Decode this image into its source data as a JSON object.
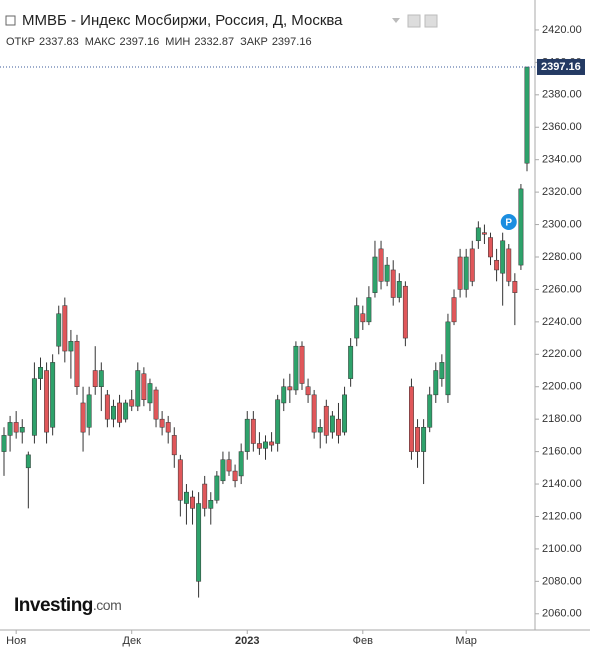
{
  "chart_data": {
    "type": "candlestick",
    "title": "ММВБ - Индекс Мосбиржи, Россия, Д, Москва",
    "ohlc_labels": [
      "ОТКР",
      "МАКС",
      "МИН",
      "ЗАКР"
    ],
    "watermark": [
      "Investing",
      ".com"
    ],
    "marker_label": "P",
    "up_color": "#2ea26b",
    "down_color": "#e0575a",
    "categories": [
      null,
      null,
      "Ноя",
      null,
      null,
      null,
      null,
      null,
      null,
      null,
      null,
      null,
      null,
      null,
      null,
      null,
      null,
      null,
      null,
      null,
      null,
      "Дек",
      null,
      null,
      null,
      null,
      null,
      null,
      null,
      null,
      null,
      null,
      null,
      null,
      null,
      null,
      null,
      null,
      null,
      null,
      "2023",
      null,
      null,
      null,
      null,
      null,
      null,
      null,
      null,
      null,
      null,
      null,
      null,
      null,
      null,
      null,
      null,
      null,
      null,
      "Фев",
      null,
      null,
      null,
      null,
      null,
      null,
      null,
      null,
      null,
      null,
      null,
      null,
      null,
      null,
      null,
      null,
      "Мар",
      null,
      null,
      null,
      null,
      null,
      null,
      null,
      null,
      null,
      null
    ],
    "open": [
      2160,
      2170,
      2178,
      2172,
      2150,
      2170,
      2205,
      2210,
      2175,
      2225,
      2250,
      2222,
      2228,
      2190,
      2175,
      2210,
      2200,
      2195,
      2180,
      2190,
      2180,
      2192,
      2188,
      2208,
      2190,
      2198,
      2180,
      2178,
      2170,
      2155,
      2128,
      2132,
      2080,
      2140,
      2125,
      2130,
      2142,
      2155,
      2148,
      2145,
      2160,
      2180,
      2165,
      2162,
      2166,
      2165,
      2190,
      2200,
      2198,
      2225,
      2200,
      2195,
      2172,
      2188,
      2172,
      2180,
      2172,
      2205,
      2230,
      2245,
      2240,
      2258,
      2285,
      2265,
      2272,
      2255,
      2262,
      2200,
      2175,
      2160,
      2175,
      2195,
      2205,
      2195,
      2255,
      2280,
      2260,
      2285,
      2290,
      2295,
      2292,
      2278,
      2270,
      2285,
      2265,
      2275,
      2337.83
    ],
    "high": [
      2175,
      2182,
      2185,
      2180,
      2160,
      2215,
      2218,
      2215,
      2220,
      2250,
      2255,
      2235,
      2232,
      2200,
      2200,
      2225,
      2215,
      2198,
      2192,
      2195,
      2192,
      2198,
      2215,
      2212,
      2205,
      2200,
      2185,
      2182,
      2175,
      2158,
      2140,
      2136,
      2135,
      2145,
      2135,
      2148,
      2160,
      2160,
      2152,
      2165,
      2185,
      2185,
      2172,
      2170,
      2172,
      2195,
      2205,
      2208,
      2228,
      2228,
      2205,
      2198,
      2180,
      2192,
      2185,
      2190,
      2200,
      2230,
      2255,
      2250,
      2262,
      2290,
      2290,
      2280,
      2278,
      2270,
      2265,
      2205,
      2180,
      2180,
      2200,
      2215,
      2220,
      2245,
      2260,
      2285,
      2285,
      2290,
      2302,
      2300,
      2295,
      2285,
      2295,
      2288,
      2270,
      2325,
      2397.16
    ],
    "low": [
      2145,
      2160,
      2168,
      2165,
      2125,
      2165,
      2198,
      2165,
      2170,
      2220,
      2215,
      2205,
      2195,
      2160,
      2170,
      2195,
      2185,
      2175,
      2175,
      2175,
      2178,
      2185,
      2185,
      2188,
      2185,
      2175,
      2170,
      2165,
      2150,
      2120,
      2115,
      2115,
      2070,
      2120,
      2115,
      2128,
      2140,
      2145,
      2138,
      2140,
      2155,
      2160,
      2158,
      2155,
      2160,
      2160,
      2185,
      2190,
      2195,
      2198,
      2190,
      2168,
      2162,
      2165,
      2168,
      2165,
      2170,
      2200,
      2225,
      2235,
      2238,
      2255,
      2260,
      2262,
      2250,
      2252,
      2225,
      2155,
      2150,
      2140,
      2172,
      2190,
      2200,
      2190,
      2238,
      2255,
      2255,
      2262,
      2285,
      2288,
      2275,
      2265,
      2250,
      2262,
      2238,
      2272,
      2332.87
    ],
    "close": [
      2170,
      2178,
      2172,
      2175,
      2158,
      2205,
      2212,
      2172,
      2215,
      2245,
      2222,
      2228,
      2200,
      2172,
      2195,
      2200,
      2210,
      2180,
      2188,
      2178,
      2190,
      2188,
      2210,
      2192,
      2202,
      2180,
      2175,
      2172,
      2158,
      2130,
      2135,
      2125,
      2128,
      2125,
      2130,
      2145,
      2155,
      2148,
      2142,
      2160,
      2180,
      2165,
      2162,
      2166,
      2164,
      2192,
      2200,
      2198,
      2225,
      2202,
      2195,
      2172,
      2175,
      2170,
      2182,
      2170,
      2195,
      2225,
      2250,
      2240,
      2255,
      2280,
      2265,
      2275,
      2255,
      2265,
      2230,
      2160,
      2160,
      2175,
      2195,
      2210,
      2215,
      2240,
      2240,
      2260,
      2280,
      2265,
      2298,
      2294,
      2280,
      2272,
      2290,
      2265,
      2258,
      2322,
      2397.16
    ],
    "ylim": [
      2050,
      2438.46
    ],
    "yticks": [
      {
        "value": 2060,
        "label": "2060.00"
      },
      {
        "value": 2080,
        "label": "2080.00"
      },
      {
        "value": 2100,
        "label": "2100.00"
      },
      {
        "value": 2120,
        "label": "2120.00"
      },
      {
        "value": 2140,
        "label": "2140.00"
      },
      {
        "value": 2160,
        "label": "2160.00"
      },
      {
        "value": 2180,
        "label": "2180.00"
      },
      {
        "value": 2200,
        "label": "2200.00"
      },
      {
        "value": 2220,
        "label": "2220.00"
      },
      {
        "value": 2240,
        "label": "2240.00"
      },
      {
        "value": 2260,
        "label": "2260.00"
      },
      {
        "value": 2280,
        "label": "2280.00"
      },
      {
        "value": 2300,
        "label": "2300.00"
      },
      {
        "value": 2320,
        "label": "2320.00"
      },
      {
        "value": 2340,
        "label": "2340.00"
      },
      {
        "value": 2360,
        "label": "2360.00"
      },
      {
        "value": 2380,
        "label": "2380.00"
      },
      {
        "value": 2400,
        "label": "2400.00"
      },
      {
        "value": 2420,
        "label": "2420.00"
      }
    ],
    "grid": false
  }
}
